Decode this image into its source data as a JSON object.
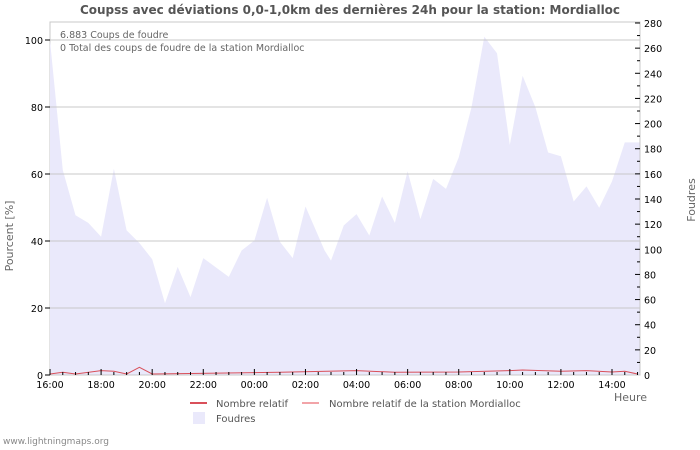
{
  "title": "Coupss avec déviations 0,0-1,0km des dernières 24h pour la station: Mordialloc",
  "info_lines": [
    "6.883  Coups de foudre",
    "0 Total des coups de foudre de la station Mordialloc"
  ],
  "footer": "www.lightningmaps.org",
  "legend": {
    "relative": "Nombre relatif",
    "relative_station": "Nombre relatif de la station Mordialloc",
    "strikes": "Foudres"
  },
  "colors": {
    "strikes_fill": "#eae9fb",
    "relative_line": "#d9505a",
    "relative_station_line": "#f2a4a8",
    "grid": "#c8c8c8",
    "text": "#555555"
  },
  "chart_data": {
    "type": "area",
    "title": "Coupss avec déviations 0,0-1,0km des dernières 24h pour la station: Mordialloc",
    "xlabel": "Heure",
    "ylabel": "Pourcent   [%]",
    "ylabel_right": "Foudres",
    "x_ticks": [
      "16:00",
      "18:00",
      "20:00",
      "22:00",
      "00:00",
      "02:00",
      "04:00",
      "06:00",
      "08:00",
      "10:00",
      "12:00",
      "14:00"
    ],
    "y_ticks_left": [
      0,
      20,
      40,
      60,
      80,
      100
    ],
    "y_ticks_right": [
      0,
      20,
      40,
      60,
      80,
      100,
      120,
      140,
      160,
      180,
      200,
      220,
      240,
      260,
      280
    ],
    "ylim_left": [
      0,
      105
    ],
    "ylim_right": [
      0,
      280
    ],
    "grid": true,
    "series": [
      {
        "name": "Foudres",
        "axis": "right",
        "type": "area",
        "points": [
          [
            "16:00",
            266
          ],
          [
            "16:30",
            163
          ],
          [
            "17:00",
            127
          ],
          [
            "17:30",
            121
          ],
          [
            "18:00",
            110
          ],
          [
            "18:30",
            164
          ],
          [
            "19:00",
            115
          ],
          [
            "19:30",
            105
          ],
          [
            "20:00",
            92
          ],
          [
            "20:30",
            57
          ],
          [
            "21:00",
            86
          ],
          [
            "21:30",
            62
          ],
          [
            "22:00",
            93
          ],
          [
            "23:00",
            78
          ],
          [
            "23:30",
            99
          ],
          [
            "00:00",
            107
          ],
          [
            "00:30",
            141
          ],
          [
            "01:00",
            106
          ],
          [
            "01:30",
            93
          ],
          [
            "02:00",
            134
          ],
          [
            "02:45",
            99
          ],
          [
            "03:00",
            91
          ],
          [
            "03:30",
            119
          ],
          [
            "04:00",
            128
          ],
          [
            "04:30",
            111
          ],
          [
            "05:00",
            142
          ],
          [
            "05:30",
            121
          ],
          [
            "06:00",
            162
          ],
          [
            "06:30",
            124
          ],
          [
            "07:00",
            156
          ],
          [
            "07:30",
            148
          ],
          [
            "08:00",
            173
          ],
          [
            "08:30",
            213
          ],
          [
            "09:00",
            269
          ],
          [
            "09:30",
            256
          ],
          [
            "10:00",
            183
          ],
          [
            "10:30",
            238
          ],
          [
            "11:00",
            213
          ],
          [
            "11:30",
            177
          ],
          [
            "12:00",
            174
          ],
          [
            "12:30",
            138
          ],
          [
            "13:00",
            150
          ],
          [
            "13:30",
            133
          ],
          [
            "14:00",
            154
          ],
          [
            "14:30",
            185
          ],
          [
            "15:00",
            185
          ]
        ]
      },
      {
        "name": "Nombre relatif",
        "axis": "left",
        "type": "line",
        "note": "values near 0%, small bumps up to ~1-2%",
        "points": [
          [
            "16:00",
            0
          ],
          [
            "16:30",
            0.5
          ],
          [
            "17:00",
            0
          ],
          [
            "18:00",
            1
          ],
          [
            "18:30",
            0.8
          ],
          [
            "19:00",
            0
          ],
          [
            "19:30",
            2
          ],
          [
            "20:00",
            0
          ],
          [
            "01:00",
            0.5
          ],
          [
            "04:00",
            1
          ],
          [
            "05:30",
            0.5
          ],
          [
            "08:00",
            0.6
          ],
          [
            "10:00",
            1
          ],
          [
            "10:30",
            1.2
          ],
          [
            "12:00",
            0.8
          ],
          [
            "13:00",
            1
          ],
          [
            "14:00",
            0.6
          ],
          [
            "14:30",
            0.8
          ],
          [
            "15:00",
            0
          ]
        ]
      },
      {
        "name": "Nombre relatif de la station Mordialloc",
        "axis": "left",
        "type": "line",
        "points": []
      }
    ]
  }
}
